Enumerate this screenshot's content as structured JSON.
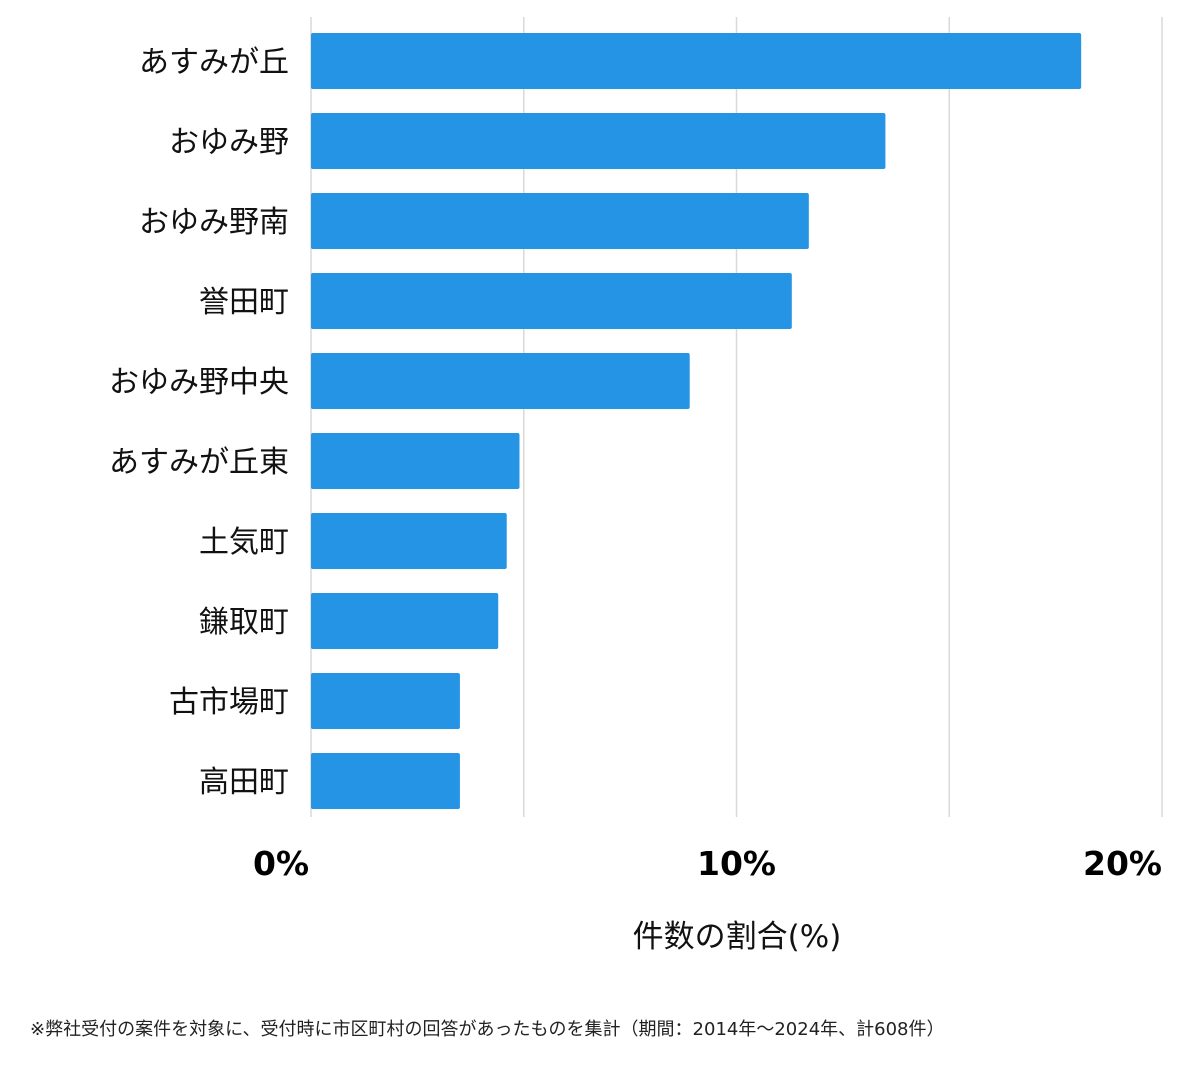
{
  "chart_data": {
    "type": "bar",
    "orientation": "horizontal",
    "categories": [
      "あすみが丘",
      "おゆみ野",
      "おゆみ野南",
      "誉田町",
      "おゆみ野中央",
      "あすみが丘東",
      "土気町",
      "鎌取町",
      "古市場町",
      "高田町"
    ],
    "values": [
      18.1,
      13.5,
      11.7,
      11.3,
      8.9,
      4.9,
      4.6,
      4.4,
      3.5,
      3.5
    ],
    "xlim": [
      0,
      20
    ],
    "xticks": [
      0,
      10,
      20
    ],
    "xtick_labels": [
      "0%",
      "10%",
      "20%"
    ],
    "xlabel": "件数の割合(%)",
    "grid": true,
    "bar_color": "#2594e4",
    "grid_color": "#d9d9d9"
  },
  "footnote": "※弊社受付の案件を対象に、受付時に市区町村の回答があったものを集計（期間：2014年〜2024年、計608件）"
}
